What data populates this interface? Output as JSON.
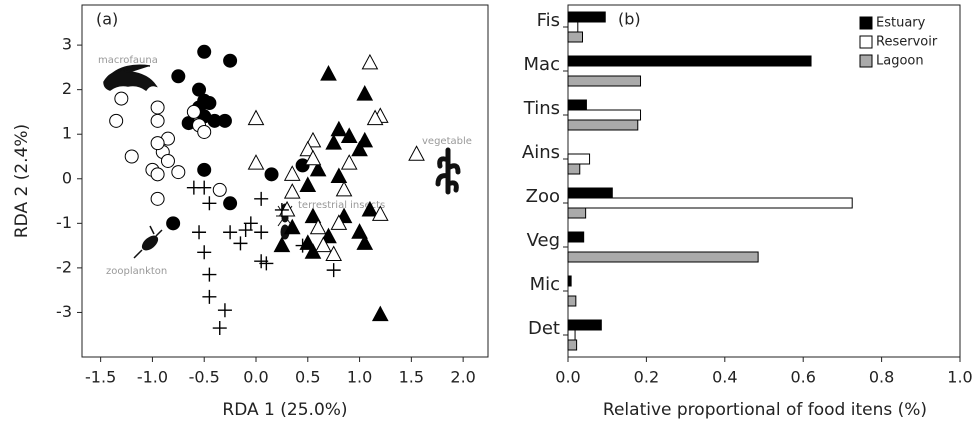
{
  "chart_data": [
    {
      "type": "scatter",
      "panel_label": "(a)",
      "x_label": "RDA 1 (25.0%)",
      "y_label": "RDA 2 (2.4%)",
      "annotations": [
        "macrofauna",
        "vegetable",
        "terrestrial insects",
        "zooplankton"
      ],
      "xlim": [
        -1.68,
        2.24
      ],
      "ylim": [
        -4,
        3.9
      ],
      "xticks": [
        {
          "value": -1.5,
          "label": "-1.5"
        },
        {
          "value": -1,
          "label": "-1.0"
        },
        {
          "value": -0.5,
          "label": "-0.5"
        },
        {
          "value": 0,
          "label": "0.0"
        },
        0.5,
        {
          "value": 1,
          "label": "1.0"
        },
        1.5,
        {
          "value": 2,
          "label": "2.0"
        }
      ],
      "yticks": [
        -3,
        -2,
        -1,
        0,
        1,
        2,
        3
      ],
      "series": [
        {
          "marker": "circle",
          "color": "#000",
          "filled": true,
          "x": [
            -0.5,
            -0.25,
            -0.75,
            -0.55,
            -0.5,
            -0.45,
            -0.55,
            -0.5,
            -0.65,
            -0.4,
            -0.3,
            -0.5,
            -0.8,
            -0.25,
            0.15,
            0.45
          ],
          "y": [
            2.85,
            2.65,
            2.3,
            2.0,
            1.75,
            1.7,
            1.6,
            1.4,
            1.25,
            1.3,
            1.3,
            0.2,
            -1.0,
            -0.55,
            0.1,
            0.3
          ]
        },
        {
          "marker": "circle",
          "color": "#000",
          "filled": false,
          "x": [
            -1.3,
            -1.35,
            -1.2,
            -0.95,
            -0.95,
            -0.85,
            -0.9,
            -0.95,
            -0.85,
            -1.0,
            -0.95,
            -0.75,
            -0.95,
            -0.6,
            -0.55,
            -0.5,
            -0.35
          ],
          "y": [
            1.8,
            1.3,
            0.5,
            1.6,
            1.3,
            0.9,
            0.6,
            0.8,
            0.4,
            0.2,
            0.1,
            0.15,
            -0.45,
            1.5,
            1.2,
            1.05,
            -0.25
          ]
        },
        {
          "marker": "triangle",
          "color": "#000",
          "filled": true,
          "x": [
            0.7,
            1.05,
            0.8,
            0.9,
            0.75,
            1.05,
            1.0,
            0.6,
            0.8,
            0.5,
            0.55,
            0.85,
            1.1,
            1.0,
            1.05,
            0.25,
            0.5,
            0.55,
            0.7,
            0.35,
            1.2
          ],
          "y": [
            2.35,
            1.9,
            1.1,
            0.95,
            0.8,
            0.85,
            0.65,
            0.2,
            0.05,
            -0.15,
            -0.85,
            -0.85,
            -0.7,
            -1.2,
            -1.45,
            -1.5,
            -1.45,
            -1.65,
            -1.3,
            -1.1,
            -3.05
          ]
        },
        {
          "marker": "triangle",
          "color": "#000",
          "filled": false,
          "x": [
            1.1,
            1.2,
            1.15,
            0.0,
            0.55,
            0.5,
            0.9,
            0.55,
            0.0,
            0.35,
            0.35,
            0.85,
            1.55,
            1.2,
            0.8,
            0.6,
            0.65,
            0.75,
            0.3
          ],
          "y": [
            2.6,
            1.4,
            1.35,
            1.35,
            0.85,
            0.65,
            0.35,
            0.45,
            0.35,
            0.1,
            -0.3,
            -0.25,
            0.55,
            -0.8,
            -1.0,
            -1.1,
            -1.5,
            -1.7,
            -0.7
          ]
        },
        {
          "marker": "plus",
          "color": "#000",
          "filled": false,
          "x": [
            -0.6,
            -0.5,
            -0.45,
            -0.55,
            -0.5,
            -0.45,
            -0.45,
            -0.3,
            -0.35,
            -0.25,
            -0.15,
            -0.05,
            0.05,
            0.05,
            0.05,
            0.1,
            0.25,
            0.45,
            0.75,
            -0.1
          ],
          "y": [
            -0.2,
            -0.2,
            -0.55,
            -1.2,
            -1.65,
            -2.15,
            -2.65,
            -2.95,
            -3.35,
            -1.2,
            -1.45,
            -1.0,
            -1.2,
            -1.85,
            -0.45,
            -1.9,
            -0.7,
            -1.5,
            -2.05,
            -1.15
          ]
        }
      ]
    },
    {
      "type": "bar",
      "panel_label": "(b)",
      "x_label": "Relative proportional of food itens (%)",
      "categories": [
        "Fis",
        "Mac",
        "Tins",
        "Ains",
        "Zoo",
        "Veg",
        "Mic",
        "Det"
      ],
      "xlim": [
        0,
        1.0
      ],
      "xticks": [
        {
          "value": 0,
          "label": "0.0"
        },
        0.2,
        0.4,
        0.6,
        0.8,
        {
          "value": 1,
          "label": "1.0"
        }
      ],
      "legend": "upper right",
      "series": [
        {
          "name": "Estuary",
          "color": "#000000",
          "values": [
            0.095,
            0.62,
            0.047,
            0,
            0.113,
            0.04,
            0.008,
            0.085
          ]
        },
        {
          "name": "Reservoir",
          "color": "#ffffff",
          "values": [
            0.025,
            0,
            0.185,
            0.055,
            0.725,
            0,
            0,
            0.018
          ]
        },
        {
          "name": "Lagoon",
          "color": "#aaaaaa",
          "values": [
            0.037,
            0.185,
            0.178,
            0.03,
            0.045,
            0.485,
            0.02,
            0.022
          ]
        }
      ]
    }
  ]
}
